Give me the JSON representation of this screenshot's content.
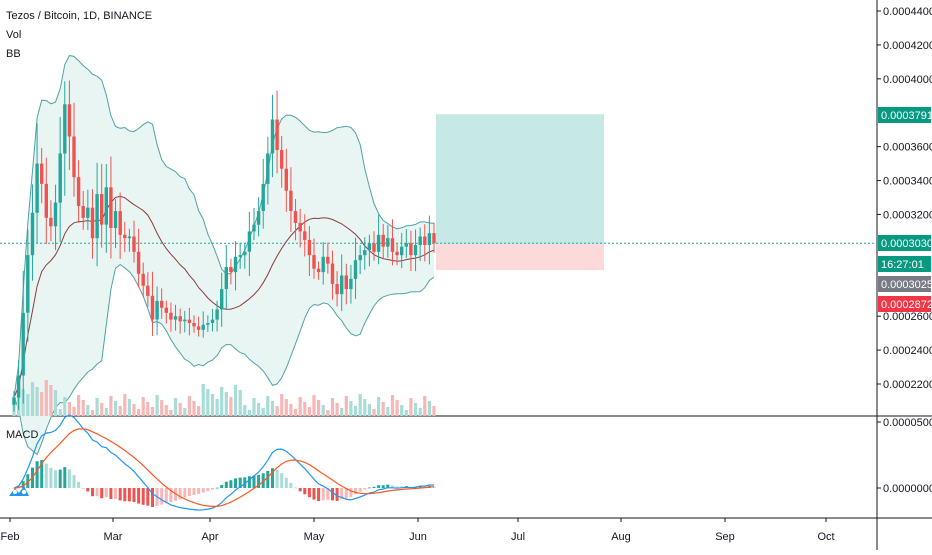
{
  "legend": {
    "symbol": "Tezos / Bitcoin, 1D, BINANCE",
    "vol": "Vol",
    "bb": "BB",
    "macd": "MACD"
  },
  "colors": {
    "up": "#26a69a",
    "down": "#ef5350",
    "bb_band": "#4fa3a1",
    "bb_basis": "#8b3a3a",
    "bb_fill": "#e8f5f3",
    "target_zone": "#c6e9e6",
    "stop_zone": "#fcd9da",
    "macd_line": "#2196f3",
    "signal_line": "#ff5722",
    "price_line": "#26a69a",
    "axis": "#131722",
    "grid": "#e8e8e8"
  },
  "badges": {
    "target_price": "0.0003791",
    "current_price": "0.0003030",
    "countdown": "16:27:01",
    "entry_price": "0.0003025",
    "stop_price": "0.0002872"
  },
  "chart_data": [
    {
      "type": "candlestick",
      "title": "Tezos / Bitcoin, 1D, BINANCE",
      "x_ticks": [
        "Feb",
        "Mar",
        "Apr",
        "May",
        "Jun",
        "Jul",
        "Aug",
        "Sep",
        "Oct"
      ],
      "y_ticks": [
        "0.0004400",
        "0.0004200",
        "0.0004000",
        "0.0003600",
        "0.0003400",
        "0.0003200",
        "0.0002600",
        "0.0002400",
        "0.0002200"
      ],
      "ylim": [
        0.000213,
        0.000443
      ],
      "start_date": "2019-02-01",
      "end_date": "2019-06-07",
      "closes": [
        0.000212,
        0.000225,
        0.000262,
        0.000296,
        0.000321,
        0.00035,
        0.000338,
        0.000318,
        0.000313,
        0.000327,
        0.000356,
        0.000385,
        0.000366,
        0.000342,
        0.000325,
        0.000318,
        0.000324,
        0.000306,
        0.000332,
        0.000314,
        0.000336,
        0.000312,
        0.000322,
        0.000308,
        0.000306,
        0.000307,
        0.000298,
        0.000285,
        0.000278,
        0.000272,
        0.000258,
        0.000269,
        0.000265,
        0.000262,
        0.000258,
        0.00026,
        0.000257,
        0.000258,
        0.000256,
        0.000254,
        0.000252,
        0.000255,
        0.000256,
        0.000258,
        0.000264,
        0.000276,
        0.000289,
        0.000286,
        0.000295,
        0.000296,
        0.000298,
        0.00031,
        0.000314,
        0.000322,
        0.000338,
        0.000356,
        0.000376,
        0.000358,
        0.000347,
        0.000334,
        0.000322,
        0.000315,
        0.00031,
        0.000305,
        0.000296,
        0.000288,
        0.000286,
        0.000295,
        0.000291,
        0.000279,
        0.000273,
        0.000284,
        0.000276,
        0.000282,
        0.000293,
        0.000296,
        0.000299,
        0.000303,
        0.000298,
        0.000308,
        0.000301,
        0.000306,
        0.000298,
        0.000296,
        0.000301,
        0.000303,
        0.000296,
        0.000302,
        0.000307,
        0.000302,
        0.000309,
        0.000303
      ],
      "series": [
        {
          "name": "Vol",
          "type": "bar"
        },
        {
          "name": "BB",
          "type": "band"
        }
      ],
      "annotation": {
        "type": "long_position",
        "entry": 0.0003025,
        "target": 0.0003791,
        "stop": 0.0002872,
        "start_date": "2019-06-07",
        "end_date": "2019-07-25"
      },
      "current_price": 0.000303
    },
    {
      "type": "line",
      "title": "MACD",
      "y_ticks": [
        "0.0000500",
        "0.0000000"
      ],
      "series": [
        {
          "name": "MACD",
          "role": "macd"
        },
        {
          "name": "Signal",
          "role": "signal"
        },
        {
          "name": "Histogram",
          "role": "histogram"
        }
      ]
    }
  ]
}
